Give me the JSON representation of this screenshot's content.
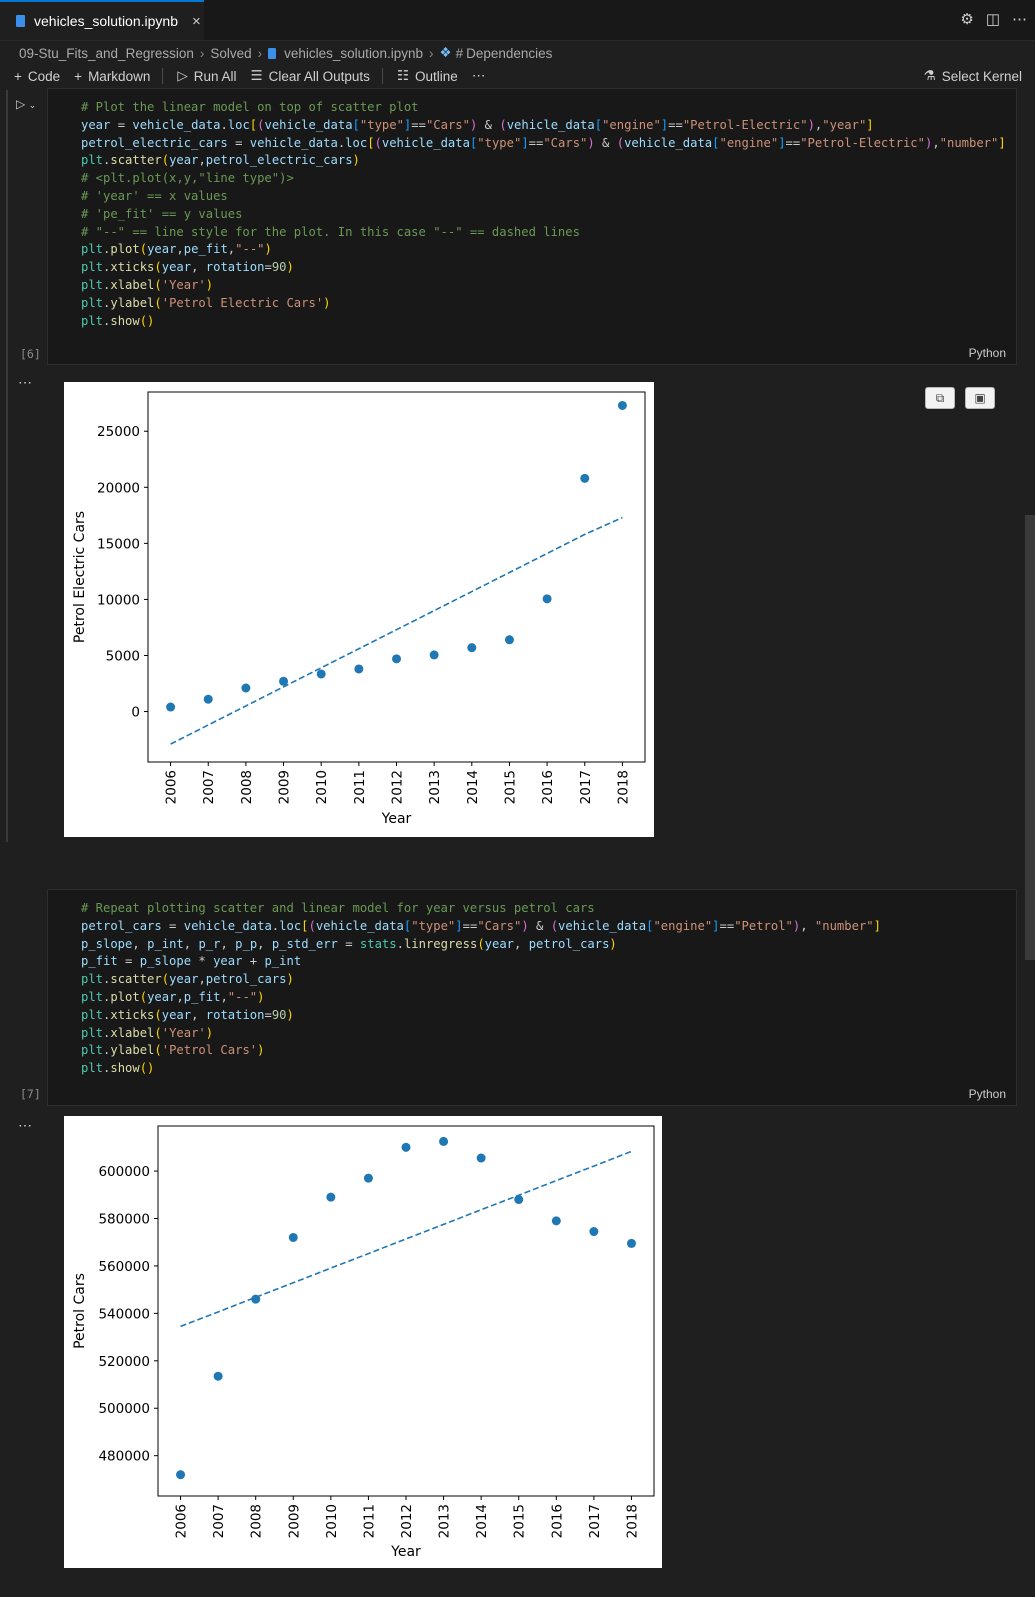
{
  "tab": {
    "title": "vehicles_solution.ipynb",
    "close": "×"
  },
  "tab_actions": [
    "⚙",
    "◫",
    "⋯"
  ],
  "breadcrumb": {
    "folder1": "09-Stu_Fits_and_Regression",
    "folder2": "Solved",
    "file": "vehicles_solution.ipynb",
    "section": "Dependencies",
    "section_icon": "#"
  },
  "toolbar": {
    "code": "Code",
    "markdown": "Markdown",
    "run_all": "Run All",
    "clear_outputs": "Clear All Outputs",
    "outline": "Outline",
    "more": "⋯",
    "kernel": "Select Kernel"
  },
  "cells": [
    {
      "exec_count": "[6]",
      "language": "Python"
    },
    {
      "exec_count": "[7]",
      "language": "Python"
    }
  ],
  "output_menu": "⋯",
  "chart_data": [
    {
      "type": "scatter",
      "title": "",
      "xlabel": "Year",
      "ylabel": "Petrol Electric Cars",
      "x": [
        2006,
        2007,
        2008,
        2009,
        2010,
        2011,
        2012,
        2013,
        2014,
        2015,
        2016,
        2017,
        2018
      ],
      "series": [
        {
          "values": [
            400,
            1100,
            2100,
            2700,
            3350,
            3800,
            4700,
            5050,
            5700,
            6400,
            10050,
            20800,
            27300
          ]
        }
      ],
      "fit_line": {
        "style": "dashed",
        "values": [
          -2900,
          -1200,
          500,
          2200,
          3900,
          5600,
          7300,
          9000,
          10700,
          12400,
          14100,
          15800,
          17300
        ]
      },
      "yticks": [
        "0",
        "5000",
        "10000",
        "15000",
        "20000",
        "25000"
      ],
      "xticks": [
        "2006",
        "2007",
        "2008",
        "2009",
        "2010",
        "2011",
        "2012",
        "2013",
        "2014",
        "2015",
        "2016",
        "2017",
        "2018"
      ],
      "ylim": [
        -4500,
        28500
      ],
      "grid": false,
      "color": "#1f77b4"
    },
    {
      "type": "scatter",
      "title": "",
      "xlabel": "Year",
      "ylabel": "Petrol Cars",
      "x": [
        2006,
        2007,
        2008,
        2009,
        2010,
        2011,
        2012,
        2013,
        2014,
        2015,
        2016,
        2017,
        2018
      ],
      "series": [
        {
          "values": [
            472000,
            513500,
            546000,
            572000,
            589000,
            597000,
            610000,
            612500,
            605500,
            588000,
            579000,
            574500,
            569500
          ]
        }
      ],
      "fit_line": {
        "style": "dashed",
        "values": [
          534500,
          540600,
          546800,
          552900,
          559100,
          565200,
          571400,
          577500,
          583700,
          589800,
          596000,
          602100,
          608300
        ]
      },
      "yticks": [
        "480000",
        "500000",
        "520000",
        "540000",
        "560000",
        "580000",
        "600000"
      ],
      "xticks": [
        "2006",
        "2007",
        "2008",
        "2009",
        "2010",
        "2011",
        "2012",
        "2013",
        "2014",
        "2015",
        "2016",
        "2017",
        "2018"
      ],
      "ylim": [
        463000,
        619000
      ],
      "grid": false,
      "color": "#1f77b4"
    }
  ]
}
